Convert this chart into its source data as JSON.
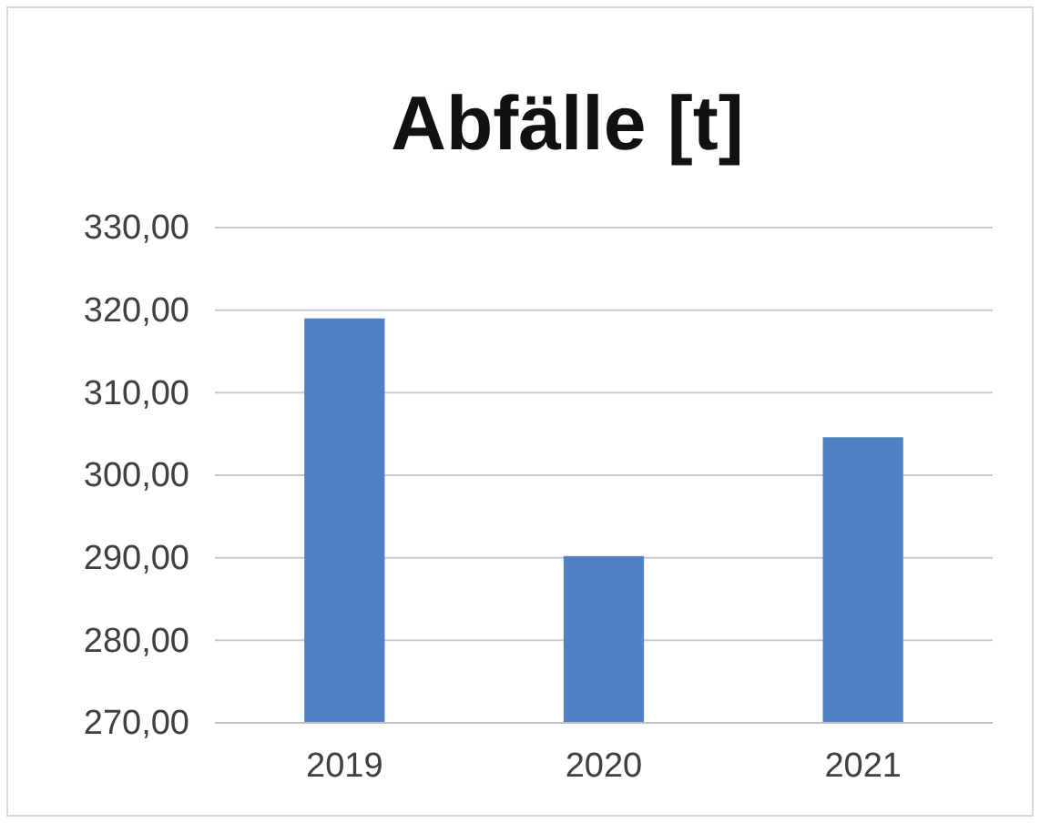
{
  "chart_data": {
    "type": "bar",
    "title": "Abfälle [t]",
    "categories": [
      "2019",
      "2020",
      "2021"
    ],
    "values": [
      319.0,
      290.2,
      304.6
    ],
    "color": "#4f81c4",
    "ylim": [
      270,
      330
    ],
    "yticks": [
      {
        "value": 270,
        "label": "270,00"
      },
      {
        "value": 280,
        "label": "280,00"
      },
      {
        "value": 290,
        "label": "290,00"
      },
      {
        "value": 300,
        "label": "300,00"
      },
      {
        "value": 310,
        "label": "310,00"
      },
      {
        "value": 320,
        "label": "320,00"
      },
      {
        "value": 330,
        "label": "330,00"
      }
    ],
    "grid": "y"
  }
}
